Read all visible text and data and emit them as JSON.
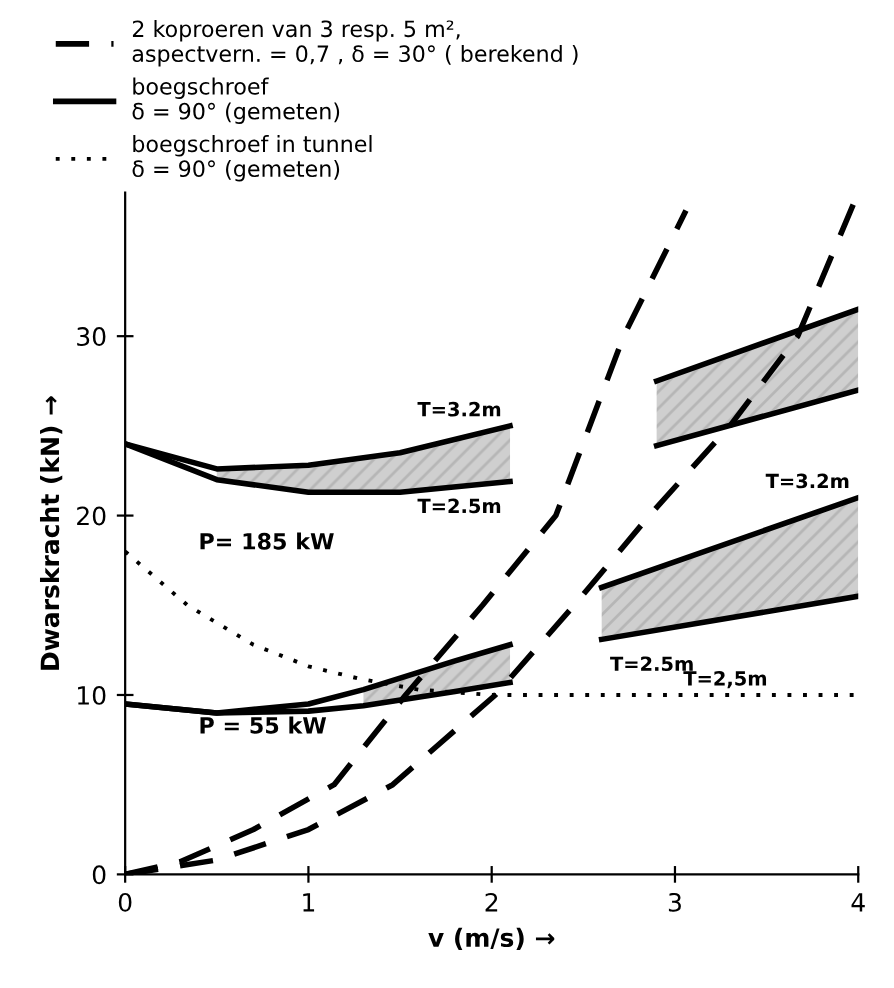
{
  "chart_data": {
    "type": "line",
    "xlabel": "v (m/s) →",
    "ylabel": "Dwarskracht (kN) →",
    "xlim": [
      0,
      4
    ],
    "xticks": [
      0,
      1,
      2,
      3,
      4
    ],
    "ylim": [
      0,
      38
    ],
    "yticks": [
      0,
      10,
      20,
      30
    ],
    "grid": false,
    "legend": "top left",
    "marker": "none",
    "series": [
      {
        "name": "2 koproeren van 3 resp. 5 m²,\naspectvern. = 0,7 , δ = 30° ( berekend )",
        "color": "#000000",
        "line_style": "dashed",
        "x": [
          0,
          0.3,
          0.7,
          1.14,
          1.53,
          1.95,
          2.35,
          2.72,
          3.06
        ],
        "values": [
          0,
          0.7,
          2.5,
          5,
          10,
          15,
          20,
          30,
          37
        ]
      },
      {
        "color": "#000000",
        "line_style": "dashed",
        "x": [
          0,
          0.5,
          1.0,
          1.46,
          2.02,
          2.45,
          2.86,
          3.3,
          3.67,
          4.0
        ],
        "values": [
          0,
          0.8,
          2.5,
          5,
          10,
          15,
          20,
          25,
          30,
          38
        ]
      },
      {
        "name": "boegschroef\nδ = 90° (gemeten)",
        "color": "#000000",
        "line_style": "solid",
        "x": [
          0,
          0.5,
          1.0,
          1.5,
          2.1,
          2.5,
          2.9,
          4.0
        ],
        "values": [
          24,
          22,
          21.3,
          21.3,
          21.9,
          null,
          23.9,
          27
        ],
        "lower": [
          null,
          22,
          21.3,
          21.3,
          21.9,
          null,
          23.9,
          27
        ],
        "upper": [
          null,
          22.6,
          22.8,
          23.5,
          25,
          null,
          27.5,
          31.5
        ]
      },
      {
        "color": "#000000",
        "line_style": "solid",
        "x": [
          0,
          0.5,
          1.0,
          1.5,
          2.1,
          2.5,
          2.9,
          4.0
        ],
        "values": [
          24,
          22.6,
          22.8,
          23.5,
          25,
          null,
          27.5,
          31.5
        ]
      },
      {
        "color": "#000000",
        "line_style": "solid",
        "x": [
          0,
          0.5,
          1.0,
          1.3,
          1.8,
          2.1,
          2.35,
          2.6,
          4.0
        ],
        "values": [
          9.5,
          9,
          9.5,
          10.3,
          11.9,
          12.8,
          null,
          16,
          21
        ],
        "lower": [
          null,
          null,
          null,
          9.4,
          10.2,
          10.7,
          null,
          13.1,
          15.5
        ],
        "upper": [
          null,
          null,
          null,
          10.3,
          11.9,
          12.8,
          null,
          16,
          21
        ]
      },
      {
        "color": "#000000",
        "line_style": "solid",
        "x": [
          0,
          0.5,
          1.0,
          1.3,
          1.8,
          2.1,
          2.35,
          2.6,
          4.0
        ],
        "values": [
          9.5,
          9,
          9.1,
          9.4,
          10.2,
          10.7,
          null,
          13.1,
          15.5
        ]
      },
      {
        "name": "boegschroef in tunnel\nδ = 90° (gemeten)",
        "color": "#000000",
        "line_style": "dotted",
        "x": [
          0,
          0.34,
          0.7,
          1.0,
          1.28,
          1.6,
          2.0,
          2.5,
          3.0,
          4.0
        ],
        "values": [
          18,
          15,
          12.8,
          11.6,
          10.9,
          10.3,
          10,
          10,
          10,
          10
        ]
      }
    ],
    "annotations": [
      {
        "text": "T=3.2m",
        "x": 2.1,
        "y": 25
      },
      {
        "text": "T=2.5m",
        "x": 2.1,
        "y": 21.9
      },
      {
        "text": "T=3.2m",
        "x": 4.0,
        "y": 21
      },
      {
        "text": "T=2.5m",
        "x": 2.6,
        "y": 13.1
      },
      {
        "text": "T=2,5m",
        "x": 3.0,
        "y": 10
      },
      "P= 185 kW",
      "P = 55 kW"
    ]
  }
}
